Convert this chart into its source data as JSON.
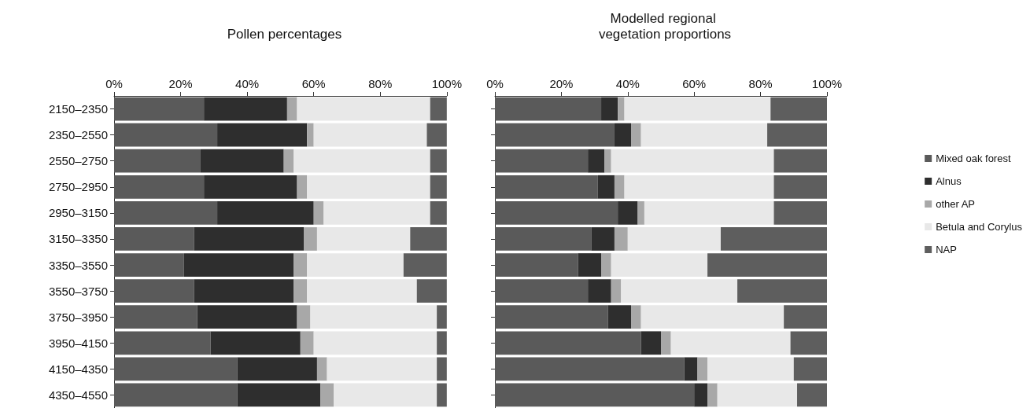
{
  "chart_data": [
    {
      "type": "bar",
      "orientation": "horizontal",
      "stacked": true,
      "title": "Pollen percentages",
      "categories": [
        "2150–2350",
        "2350–2550",
        "2550–2750",
        "2750–2950",
        "2950–3150",
        "3150–3350",
        "3350–3550",
        "3550–3750",
        "3750–3950",
        "3950–4150",
        "4150–4350",
        "4350–4550"
      ],
      "series": [
        {
          "color": "#5a5a5a",
          "values": [
            27,
            31,
            26,
            27,
            31,
            24,
            21,
            24,
            25,
            29,
            37,
            37
          ]
        },
        {
          "color": "#2e2e2e",
          "values": [
            25,
            27,
            25,
            28,
            29,
            33,
            33,
            30,
            30,
            27,
            24,
            25
          ]
        },
        {
          "color": "#a8a8a8",
          "values": [
            3,
            2,
            3,
            3,
            3,
            4,
            4,
            4,
            4,
            4,
            3,
            4
          ]
        },
        {
          "color": "#e8e8e8",
          "values": [
            40,
            34,
            41,
            37,
            32,
            28,
            29,
            33,
            38,
            37,
            33,
            31
          ]
        },
        {
          "color": "#5e5e5e",
          "values": [
            5,
            6,
            5,
            5,
            5,
            11,
            13,
            9,
            3,
            3,
            3,
            3
          ]
        }
      ],
      "xlim": [
        0,
        100
      ],
      "xticks": [
        {
          "value": 0,
          "label": "0%"
        },
        {
          "value": 20,
          "label": "20%"
        },
        {
          "value": 40,
          "label": "40%"
        },
        {
          "value": 60,
          "label": "60%"
        },
        {
          "value": 80,
          "label": "80%"
        },
        {
          "value": 100,
          "label": "100%"
        }
      ],
      "grid": false,
      "legend": false
    },
    {
      "type": "bar",
      "orientation": "horizontal",
      "stacked": true,
      "title": "Modelled regional vegetation proportions",
      "categories": [
        null,
        null,
        null,
        null,
        null,
        null,
        null,
        null,
        null,
        null,
        null,
        null
      ],
      "series": [
        {
          "name": "Mixed oak forest",
          "color": "#5a5a5a",
          "values": [
            32,
            36,
            28,
            31,
            37,
            29,
            25,
            28,
            34,
            44,
            57,
            60
          ]
        },
        {
          "name": "Alnus",
          "color": "#2e2e2e",
          "values": [
            5,
            5,
            5,
            5,
            6,
            7,
            7,
            7,
            7,
            6,
            4,
            4
          ]
        },
        {
          "name": "other AP",
          "color": "#a8a8a8",
          "values": [
            2,
            3,
            2,
            3,
            2,
            4,
            3,
            3,
            3,
            3,
            3,
            3
          ]
        },
        {
          "name": "Betula and Corylus",
          "color": "#e8e8e8",
          "values": [
            44,
            38,
            49,
            45,
            39,
            28,
            29,
            35,
            43,
            36,
            26,
            24
          ]
        },
        {
          "name": "NAP",
          "color": "#5e5e5e",
          "values": [
            17,
            18,
            16,
            16,
            16,
            32,
            36,
            27,
            13,
            11,
            10,
            9
          ]
        }
      ],
      "xlim": [
        0,
        100
      ],
      "xticks": [
        {
          "value": 0,
          "label": "0%"
        },
        {
          "value": 20,
          "label": "20%"
        },
        {
          "value": 40,
          "label": "40%"
        },
        {
          "value": 60,
          "label": "60%"
        },
        {
          "value": 80,
          "label": "80%"
        },
        {
          "value": 100,
          "label": "100%"
        }
      ],
      "grid": false,
      "legend": "right",
      "tick_labels": "x"
    }
  ]
}
